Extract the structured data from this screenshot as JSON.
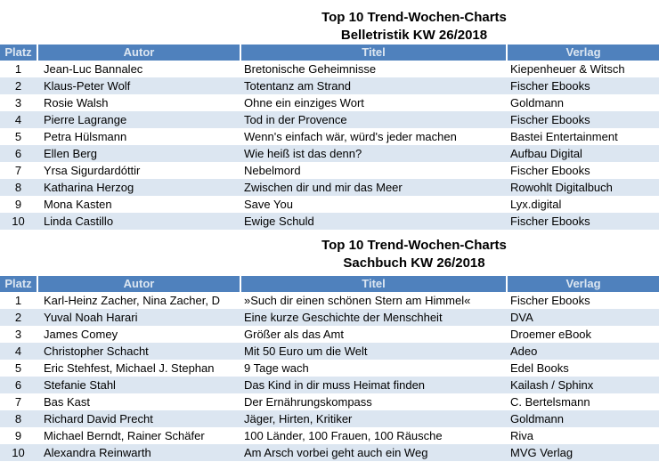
{
  "colors": {
    "header_bg": "#4f81bd",
    "header_text": "#dce6f1",
    "band": "#dce6f1",
    "body_text": "#000000"
  },
  "tables": [
    {
      "title_line1": "Top 10 Trend-Wochen-Charts",
      "title_line2": "Belletristik KW 26/2018",
      "columns": [
        "Platz",
        "Autor",
        "Titel",
        "Verlag"
      ],
      "rows": [
        {
          "platz": "1",
          "autor": "Jean-Luc Bannalec",
          "titel": "Bretonische Geheimnisse",
          "verlag": "Kiepenheuer & Witsch"
        },
        {
          "platz": "2",
          "autor": "Klaus-Peter Wolf",
          "titel": "Totentanz am Strand",
          "verlag": "Fischer Ebooks"
        },
        {
          "platz": "3",
          "autor": "Rosie Walsh",
          "titel": "Ohne ein einziges Wort",
          "verlag": "Goldmann"
        },
        {
          "platz": "4",
          "autor": "Pierre Lagrange",
          "titel": "Tod in der Provence",
          "verlag": "Fischer Ebooks"
        },
        {
          "platz": "5",
          "autor": "Petra Hülsmann",
          "titel": "Wenn's einfach wär, würd's jeder machen",
          "verlag": "Bastei Entertainment"
        },
        {
          "platz": "6",
          "autor": "Ellen Berg",
          "titel": "Wie heiß ist das denn?",
          "verlag": "Aufbau Digital"
        },
        {
          "platz": "7",
          "autor": "Yrsa Sigurdardóttir",
          "titel": "Nebelmord",
          "verlag": "Fischer Ebooks"
        },
        {
          "platz": "8",
          "autor": "Katharina Herzog",
          "titel": "Zwischen dir und mir das Meer",
          "verlag": "Rowohlt Digitalbuch"
        },
        {
          "platz": "9",
          "autor": "Mona Kasten",
          "titel": "Save You",
          "verlag": "Lyx.digital"
        },
        {
          "platz": "10",
          "autor": "Linda Castillo",
          "titel": "Ewige Schuld",
          "verlag": "Fischer Ebooks"
        }
      ]
    },
    {
      "title_line1": "Top 10 Trend-Wochen-Charts",
      "title_line2": "Sachbuch KW 26/2018",
      "columns": [
        "Platz",
        "Autor",
        "Titel",
        "Verlag"
      ],
      "rows": [
        {
          "platz": "1",
          "autor": "Karl-Heinz Zacher, Nina Zacher, D",
          "titel": "»Such dir einen schönen Stern am Himmel«",
          "verlag": "Fischer Ebooks"
        },
        {
          "platz": "2",
          "autor": "Yuval Noah Harari",
          "titel": "Eine kurze Geschichte der Menschheit",
          "verlag": "DVA"
        },
        {
          "platz": "3",
          "autor": "James Comey",
          "titel": "Größer als das Amt",
          "verlag": "Droemer eBook"
        },
        {
          "platz": "4",
          "autor": "Christopher Schacht",
          "titel": "Mit 50 Euro um die Welt",
          "verlag": "Adeo"
        },
        {
          "platz": "5",
          "autor": "Eric Stehfest, Michael J. Stephan",
          "titel": "9 Tage wach",
          "verlag": "Edel Books"
        },
        {
          "platz": "6",
          "autor": "Stefanie Stahl",
          "titel": "Das Kind in dir muss Heimat finden",
          "verlag": "Kailash / Sphinx"
        },
        {
          "platz": "7",
          "autor": "Bas Kast",
          "titel": "Der Ernährungskompass",
          "verlag": "C. Bertelsmann"
        },
        {
          "platz": "8",
          "autor": "Richard David Precht",
          "titel": "Jäger, Hirten, Kritiker",
          "verlag": "Goldmann"
        },
        {
          "platz": "9",
          "autor": "Michael Berndt, Rainer Schäfer",
          "titel": "100 Länder, 100 Frauen, 100 Räusche",
          "verlag": "Riva"
        },
        {
          "platz": "10",
          "autor": "Alexandra Reinwarth",
          "titel": "Am Arsch vorbei geht auch ein Weg",
          "verlag": "MVG Verlag"
        }
      ]
    }
  ]
}
